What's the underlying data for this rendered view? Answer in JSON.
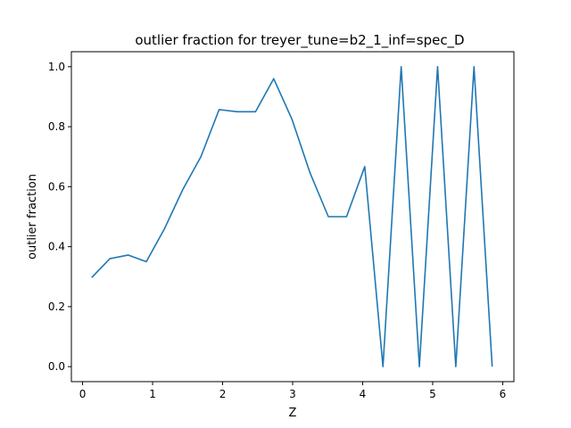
{
  "chart_data": {
    "type": "line",
    "title": "outlier fraction for treyer_tune=b2_1_inf=spec_D",
    "xlabel": "Z",
    "ylabel": "outlier fraction",
    "xlim": [
      -0.16,
      6.16
    ],
    "ylim": [
      -0.05,
      1.05
    ],
    "xticks": [
      0,
      1,
      2,
      3,
      4,
      5,
      6
    ],
    "yticks": [
      0.0,
      0.2,
      0.4,
      0.6,
      0.8,
      1.0
    ],
    "xtick_labels": [
      "0",
      "1",
      "2",
      "3",
      "4",
      "5",
      "6"
    ],
    "ytick_labels": [
      "0.0",
      "0.2",
      "0.4",
      "0.6",
      "0.8",
      "1.0"
    ],
    "grid": false,
    "series": [
      {
        "color": "#1f77b4",
        "x": [
          0.13,
          0.39,
          0.65,
          0.91,
          1.17,
          1.43,
          1.69,
          1.95,
          2.21,
          2.47,
          2.73,
          2.99,
          3.25,
          3.51,
          3.77,
          4.03,
          4.29,
          4.55,
          4.81,
          5.07,
          5.33,
          5.59,
          5.85
        ],
        "y": [
          0.297,
          0.36,
          0.372,
          0.35,
          0.46,
          0.59,
          0.7,
          0.857,
          0.85,
          0.85,
          0.96,
          0.825,
          0.645,
          0.5,
          0.5,
          0.667,
          0.0,
          1.0,
          0.0,
          1.0,
          0.0,
          1.0,
          0.0
        ]
      }
    ]
  }
}
